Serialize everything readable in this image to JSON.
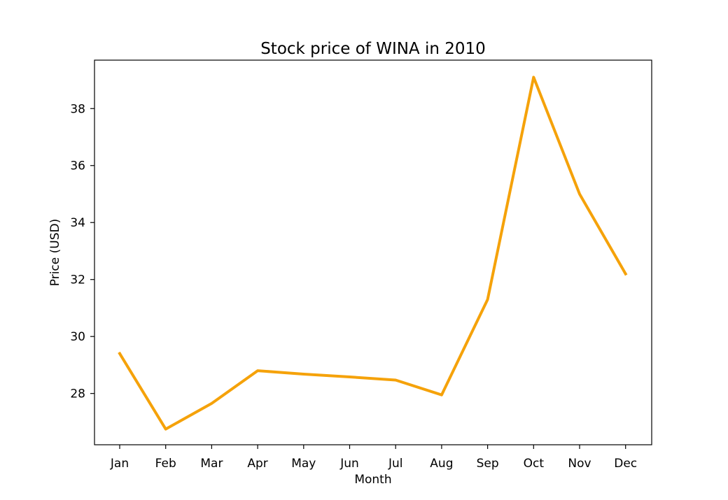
{
  "chart_data": {
    "type": "line",
    "title": "Stock price of WINA in 2010",
    "xlabel": "Month",
    "ylabel": "Price (USD)",
    "categories": [
      "Jan",
      "Feb",
      "Mar",
      "Apr",
      "May",
      "Jun",
      "Jul",
      "Aug",
      "Sep",
      "Oct",
      "Nov",
      "Dec"
    ],
    "series": [
      {
        "values": [
          29.4,
          26.75,
          27.65,
          28.8,
          28.68,
          28.58,
          28.47,
          27.95,
          31.3,
          39.1,
          35.0,
          32.2
        ],
        "color": "#f5a20a"
      }
    ],
    "ylim": [
      26.2,
      39.7
    ],
    "yticks": [
      28,
      30,
      32,
      34,
      36,
      38
    ],
    "grid": false,
    "legend": "none"
  }
}
